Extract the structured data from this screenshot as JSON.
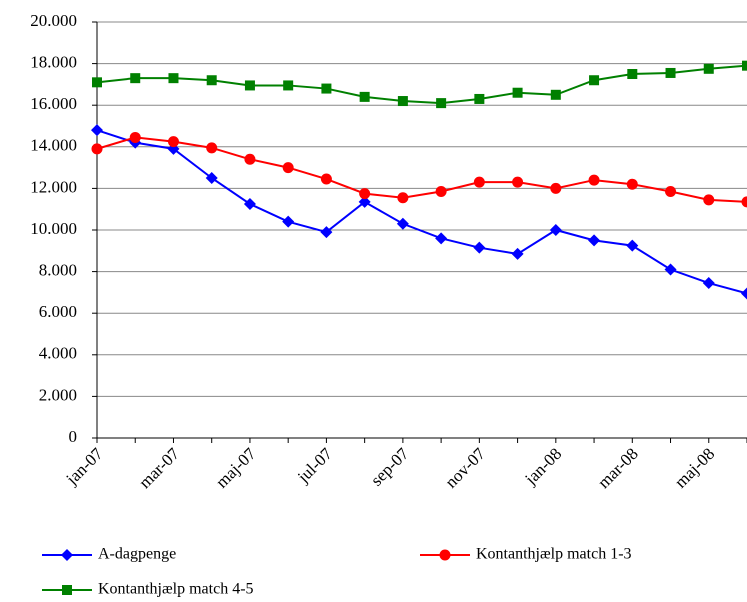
{
  "chart_data": {
    "type": "line",
    "categories": [
      "jan-07",
      null,
      "mar-07",
      null,
      "maj-07",
      null,
      "jul-07",
      null,
      "sep-07",
      null,
      "nov-07",
      null,
      "jan-08",
      null,
      "mar-08",
      null,
      "maj-08",
      null
    ],
    "series": [
      {
        "name": "A-dagpenge",
        "color": "#0000ff",
        "marker": "diamond",
        "values": [
          14800,
          14200,
          13900,
          12500,
          11250,
          10400,
          9900,
          11350,
          10300,
          9600,
          9150,
          8850,
          10000,
          9500,
          9250,
          8100,
          7450,
          6950
        ]
      },
      {
        "name": "Kontanthjælp match 1-3",
        "color": "#ff0000",
        "marker": "circle",
        "values": [
          13900,
          14450,
          14250,
          13950,
          13400,
          13000,
          12450,
          11750,
          11550,
          11850,
          12300,
          12300,
          12000,
          12400,
          12200,
          11850,
          11450,
          11350
        ]
      },
      {
        "name": "Kontanthjælp match 4-5",
        "color": "#008000",
        "marker": "square",
        "values": [
          17100,
          17300,
          17300,
          17200,
          16950,
          16950,
          16800,
          16400,
          16200,
          16100,
          16300,
          16600,
          16500,
          17200,
          17500,
          17550,
          17750,
          17900
        ]
      }
    ],
    "ylim": [
      0,
      20000
    ],
    "yticks": [
      0,
      {
        "value": 2000,
        "label": "2.000"
      },
      {
        "value": 4000,
        "label": "4.000"
      },
      {
        "value": 6000,
        "label": "6.000"
      },
      {
        "value": 8000,
        "label": "8.000"
      },
      {
        "value": 10000,
        "label": "10.000"
      },
      {
        "value": 12000,
        "label": "12.000"
      },
      {
        "value": 14000,
        "label": "14.000"
      },
      {
        "value": 16000,
        "label": "16.000"
      },
      {
        "value": 18000,
        "label": "18.000"
      },
      {
        "value": 20000,
        "label": "20.000"
      }
    ],
    "grid": true,
    "legend": "bottom"
  }
}
